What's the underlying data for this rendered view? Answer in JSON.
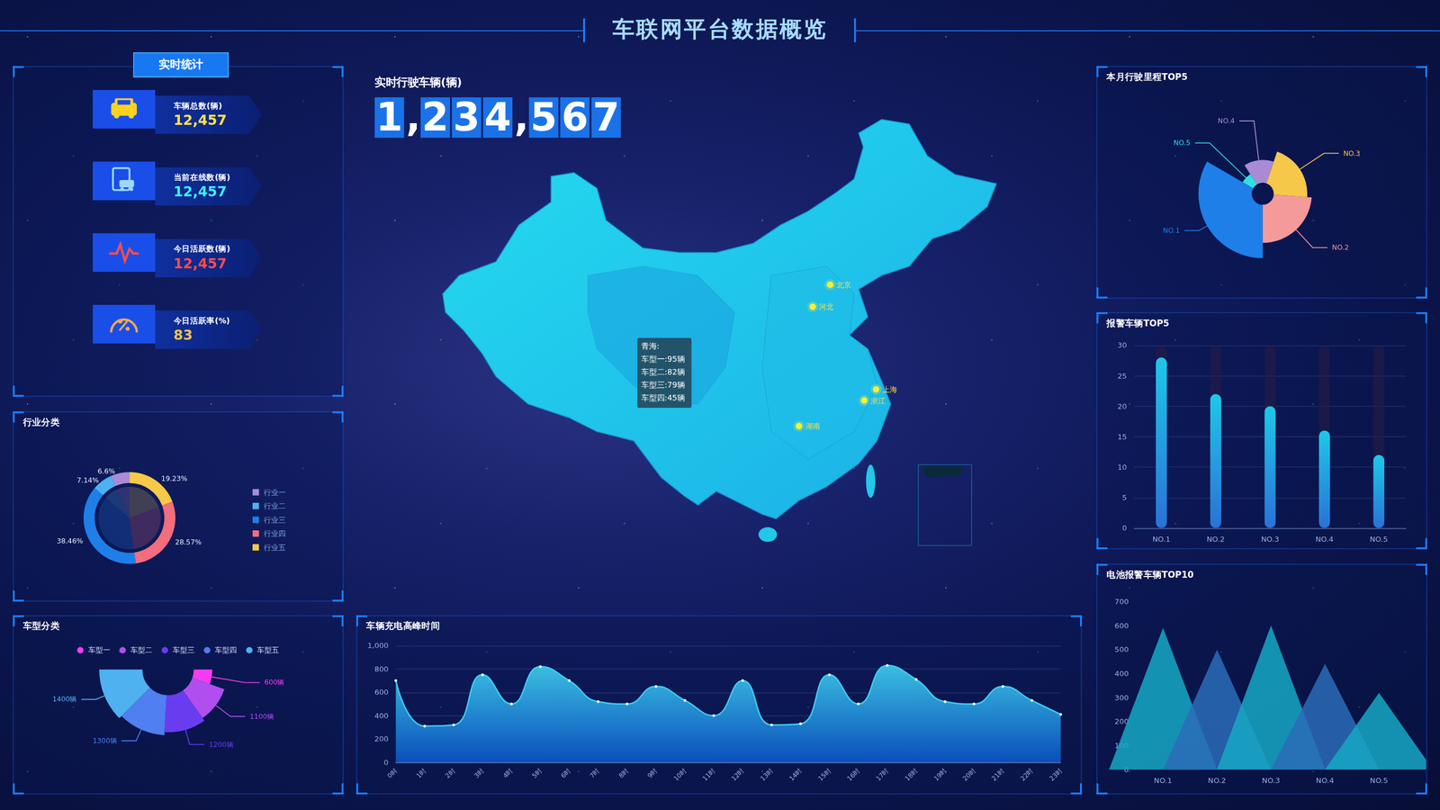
{
  "title": "车联网平台数据概览",
  "stats": {
    "title": "实时统计",
    "items": [
      {
        "label": "车辆总数(辆)",
        "value": "12,457"
      },
      {
        "label": "当前在线数(辆)",
        "value": "12,457"
      },
      {
        "label": "今日活跃数(辆)",
        "value": "12,457"
      },
      {
        "label": "今日活跃率(%)",
        "value": "83"
      }
    ]
  },
  "counter": {
    "title": "实时行驶车辆(辆)",
    "value": "1,234,567"
  },
  "map": {
    "labels": [
      "北京",
      "河北",
      "上海",
      "浙江",
      "湖南"
    ],
    "tooltip": {
      "title": "青海:",
      "lines": [
        "车型一:95辆",
        "车型二:82辆",
        "车型三:79辆",
        "车型四:45辆"
      ]
    }
  },
  "chart_data": [
    {
      "type": "pie",
      "title": "行业分类",
      "categories": [
        "行业一",
        "行业二",
        "行业三",
        "行业四",
        "行业五"
      ],
      "values": [
        6.6,
        7.14,
        38.46,
        28.57,
        19.23
      ],
      "value_labels": [
        "6.6%",
        "7.14%",
        "38.46%",
        "28.57%",
        "19.23%"
      ],
      "colors": [
        "#a98bd8",
        "#4fb1f0",
        "#1e7fe8",
        "#f26d7d",
        "#f7c948"
      ],
      "legend": "right",
      "data_labels": true
    },
    {
      "type": "pie",
      "title": "车型分类",
      "categories": [
        "车型一",
        "车型二",
        "车型三",
        "车型四",
        "车型五"
      ],
      "values": [
        600,
        1100,
        1200,
        1300,
        1400
      ],
      "value_labels": [
        "600辆",
        "1100辆",
        "1200辆",
        "1300辆",
        "1400辆"
      ],
      "colors": [
        "#f53cf0",
        "#b04ef0",
        "#6a3cf0",
        "#4f7ff0",
        "#4fb1f0"
      ],
      "legend": "top",
      "data_labels": true
    },
    {
      "type": "line",
      "title": "车辆充电高峰时间",
      "categories": [
        "0时",
        "1时",
        "2时",
        "3时",
        "4时",
        "5时",
        "6时",
        "7时",
        "8时",
        "9时",
        "10时",
        "11时",
        "12时",
        "13时",
        "14时",
        "15时",
        "16时",
        "17时",
        "18时",
        "19时",
        "20时",
        "21时",
        "22时",
        "23时"
      ],
      "values": [
        700,
        310,
        320,
        750,
        500,
        820,
        700,
        520,
        500,
        650,
        530,
        400,
        700,
        320,
        330,
        750,
        500,
        830,
        710,
        520,
        500,
        650,
        530,
        410
      ],
      "ylim": [
        0,
        1000
      ],
      "yticks": [
        0,
        200,
        400,
        600,
        800,
        {
          "value": 1000,
          "label": "1,000"
        }
      ],
      "grid": true,
      "color": "#3fd0f0"
    },
    {
      "type": "pie",
      "title": "本月行驶里程TOP5",
      "categories": [
        "NO.1",
        "NO.2",
        "NO.3",
        "NO.4",
        "NO.5"
      ],
      "values": [
        35,
        25,
        22,
        15,
        8
      ],
      "colors": [
        "#1e7fe8",
        "#f59a9a",
        "#f5c84a",
        "#a98bd4",
        "#2ee0e0"
      ]
    },
    {
      "type": "bar",
      "title": "报警车辆TOP5",
      "categories": [
        "NO.1",
        "NO.2",
        "NO.3",
        "NO.4",
        "NO.5"
      ],
      "values": [
        28,
        22,
        20,
        16,
        12
      ],
      "ylim": [
        0,
        30
      ],
      "yticks": [
        0,
        5,
        10,
        15,
        20,
        25,
        30
      ],
      "grid": true,
      "color": "#1ec8e8"
    },
    {
      "type": "bar",
      "marker": "triangle",
      "title": "电池报警车辆TOP10",
      "categories": [
        "NO.1",
        "NO.2",
        "NO.3",
        "NO.4",
        "NO.5"
      ],
      "values": [
        590,
        500,
        600,
        440,
        320
      ],
      "ylim": [
        0,
        700
      ],
      "yticks": [
        0,
        100,
        200,
        300,
        400,
        500,
        600,
        700
      ],
      "grid": false,
      "colors": [
        "#16a8c4",
        "#2a6cb8",
        "#16a8c4",
        "#2a6cb8",
        "#16a8c4"
      ]
    }
  ]
}
